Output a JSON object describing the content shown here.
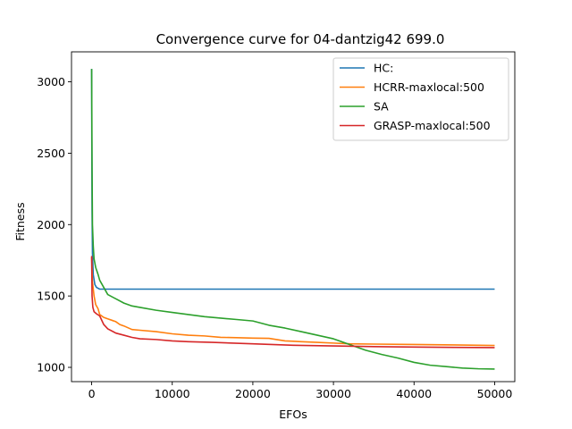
{
  "chart_data": {
    "type": "line",
    "title": "Convergence curve for 04-dantzig42 699.0",
    "xlabel": "EFOs",
    "ylabel": "Fitness",
    "xlim": [
      -2500,
      52500
    ],
    "ylim": [
      900,
      3210
    ],
    "xticks": [
      0,
      10000,
      20000,
      30000,
      40000,
      50000
    ],
    "yticks": [
      1000,
      1500,
      2000,
      2500,
      3000
    ],
    "legend_position": "top-right",
    "grid": false,
    "series": [
      {
        "name": "HC:",
        "color": "#1f77b4",
        "x": [
          0,
          20,
          50,
          100,
          200,
          400,
          600,
          1000,
          50000
        ],
        "y": [
          3090,
          2600,
          2100,
          1800,
          1650,
          1580,
          1560,
          1548,
          1548
        ]
      },
      {
        "name": "HCRR-maxlocal:500",
        "color": "#ff7f0e",
        "x": [
          0,
          100,
          300,
          500,
          800,
          1000,
          1500,
          2000,
          2500,
          3000,
          3500,
          4000,
          5000,
          6000,
          8000,
          10000,
          12000,
          14000,
          16000,
          18000,
          20000,
          22000,
          24000,
          25000,
          26000,
          28000,
          30000,
          32000,
          35000,
          40000,
          45000,
          50000
        ],
        "y": [
          1770,
          1600,
          1500,
          1440,
          1410,
          1370,
          1350,
          1340,
          1330,
          1320,
          1300,
          1290,
          1265,
          1260,
          1250,
          1235,
          1225,
          1220,
          1210,
          1208,
          1205,
          1203,
          1185,
          1183,
          1180,
          1175,
          1170,
          1165,
          1163,
          1160,
          1157,
          1153
        ]
      },
      {
        "name": "SA",
        "color": "#2ca02c",
        "x": [
          0,
          50,
          100,
          200,
          300,
          500,
          800,
          1000,
          1500,
          2000,
          3000,
          4000,
          5000,
          6000,
          8000,
          10000,
          12000,
          14000,
          16000,
          18000,
          20000,
          22000,
          24000,
          26000,
          28000,
          30000,
          32000,
          34000,
          36000,
          38000,
          40000,
          42000,
          44000,
          46000,
          48000,
          50000
        ],
        "y": [
          3090,
          2400,
          2000,
          1850,
          1760,
          1700,
          1650,
          1610,
          1560,
          1510,
          1480,
          1450,
          1430,
          1420,
          1400,
          1385,
          1370,
          1355,
          1345,
          1335,
          1325,
          1295,
          1275,
          1250,
          1225,
          1200,
          1160,
          1120,
          1090,
          1065,
          1035,
          1015,
          1005,
          995,
          990,
          988
        ]
      },
      {
        "name": "GRASP-maxlocal:500",
        "color": "#d62728",
        "x": [
          0,
          50,
          150,
          300,
          600,
          1000,
          1500,
          2000,
          3000,
          4000,
          5000,
          6000,
          8000,
          10000,
          12000,
          15000,
          20000,
          25000,
          30000,
          35000,
          40000,
          45000,
          50000
        ],
        "y": [
          1780,
          1500,
          1420,
          1390,
          1375,
          1360,
          1300,
          1270,
          1240,
          1225,
          1210,
          1200,
          1195,
          1185,
          1180,
          1175,
          1165,
          1155,
          1150,
          1145,
          1142,
          1140,
          1138
        ]
      }
    ]
  }
}
